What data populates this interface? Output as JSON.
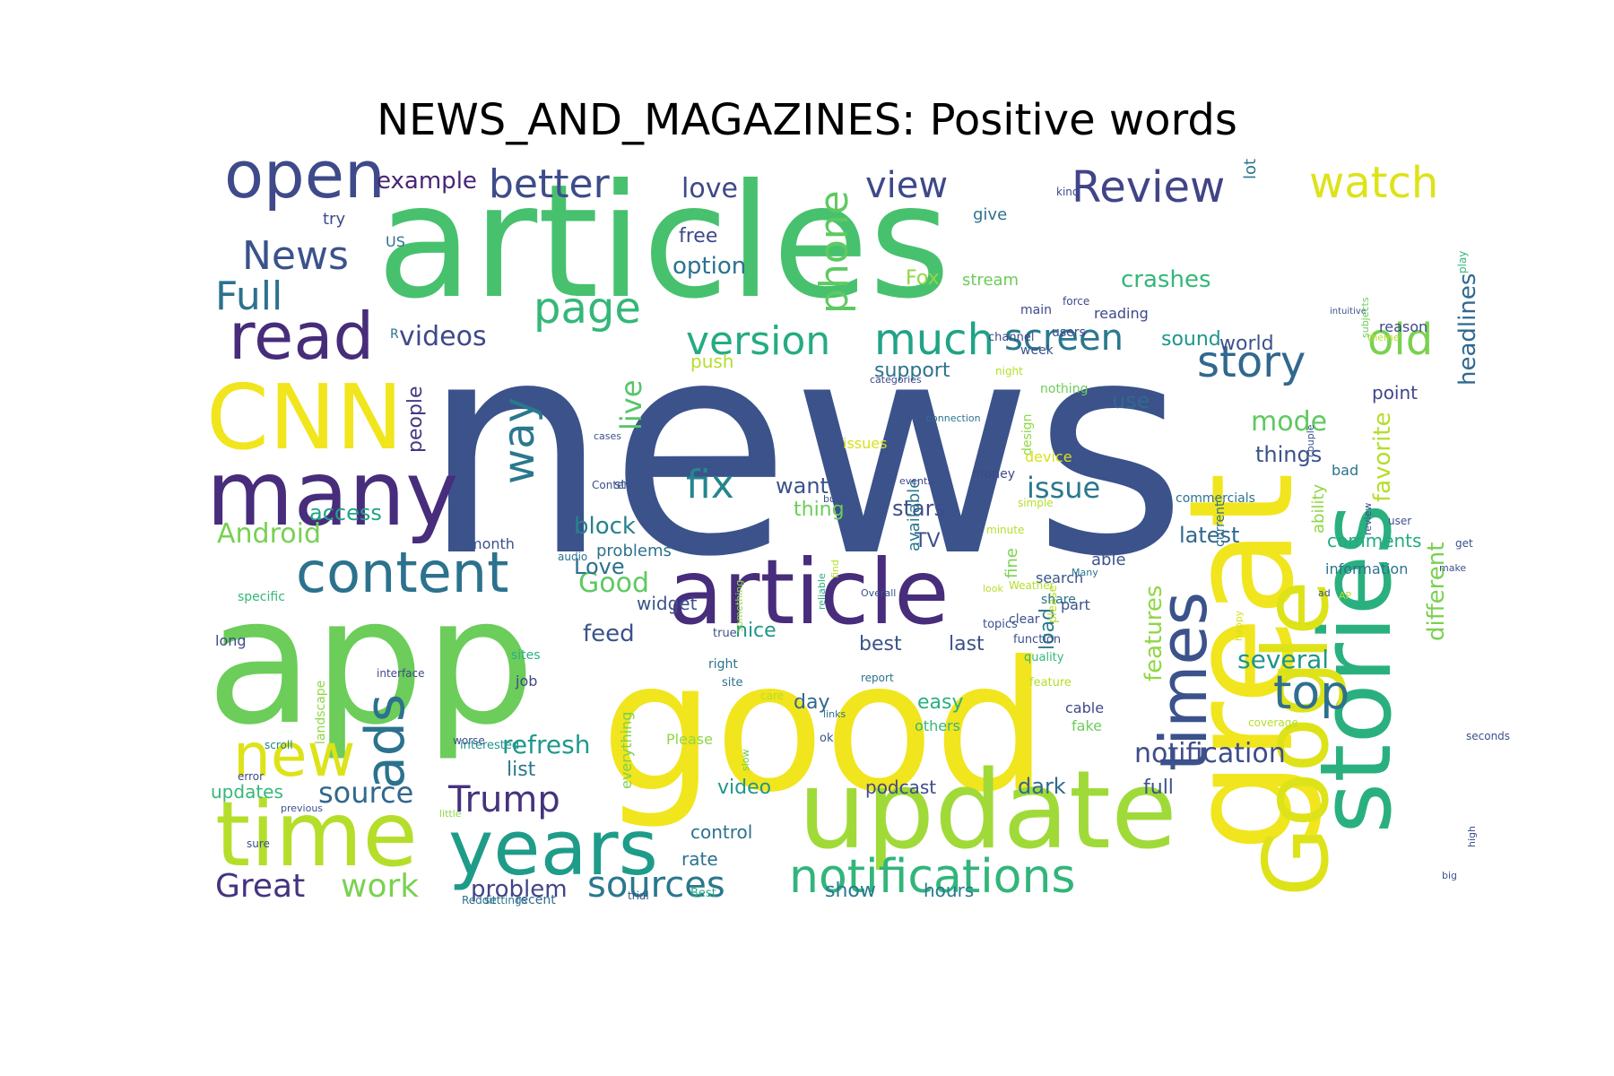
{
  "title": "NEWS_AND_MAGAZINES: Positive words",
  "words": [
    {
      "text": "news",
      "size": 330,
      "color": "#3b528b",
      "rot": 0
    },
    {
      "text": "articles",
      "size": 175,
      "color": "#47c16e",
      "rot": 0
    },
    {
      "text": "app",
      "size": 195,
      "color": "#6ccd5a",
      "rot": 0
    },
    {
      "text": "good",
      "size": 200,
      "color": "#f1e51d",
      "rot": 0
    },
    {
      "text": "great",
      "size": 160,
      "color": "#f1e51d",
      "rot": -90
    },
    {
      "text": "stories",
      "size": 110,
      "color": "#2ab07f",
      "rot": -90
    },
    {
      "text": "update",
      "size": 120,
      "color": "#a0da39",
      "rot": 0
    },
    {
      "text": "Google",
      "size": 100,
      "color": "#dde318",
      "rot": -90
    },
    {
      "text": "article",
      "size": 100,
      "color": "#472d7b",
      "rot": 0
    },
    {
      "text": "many",
      "size": 100,
      "color": "#472d7b",
      "rot": 0
    },
    {
      "text": "CNN",
      "size": 100,
      "color": "#f1e51d",
      "rot": 0
    },
    {
      "text": "time",
      "size": 100,
      "color": "#b5de2b",
      "rot": 0
    },
    {
      "text": "years",
      "size": 85,
      "color": "#1e9c89",
      "rot": 0
    },
    {
      "text": "open",
      "size": 72,
      "color": "#3e4a89",
      "rot": 0
    },
    {
      "text": "read",
      "size": 72,
      "color": "#472c7a",
      "rot": 0
    },
    {
      "text": "content",
      "size": 62,
      "color": "#2c728e",
      "rot": 0
    },
    {
      "text": "new",
      "size": 66,
      "color": "#dde318",
      "rot": 0
    },
    {
      "text": "times",
      "size": 72,
      "color": "#3b528b",
      "rot": -90
    },
    {
      "text": "notifications",
      "size": 52,
      "color": "#31b57b",
      "rot": 0
    },
    {
      "text": "ads",
      "size": 60,
      "color": "#2c728e",
      "rot": -90
    },
    {
      "text": "top",
      "size": 52,
      "color": "#2d708e",
      "rot": 0
    },
    {
      "text": "old",
      "size": 48,
      "color": "#7ad151",
      "rot": 0
    },
    {
      "text": "story",
      "size": 48,
      "color": "#31688e",
      "rot": 0
    },
    {
      "text": "watch",
      "size": 48,
      "color": "#dde318",
      "rot": 0
    },
    {
      "text": "Review",
      "size": 48,
      "color": "#414487",
      "rot": 0
    },
    {
      "text": "better",
      "size": 44,
      "color": "#3e4c8a",
      "rot": 0
    },
    {
      "text": "page",
      "size": 48,
      "color": "#35b779",
      "rot": 0
    },
    {
      "text": "News",
      "size": 44,
      "color": "#3b528b",
      "rot": 0
    },
    {
      "text": "Full",
      "size": 44,
      "color": "#2c728e",
      "rot": 0
    },
    {
      "text": "version",
      "size": 44,
      "color": "#25ab82",
      "rot": 0
    },
    {
      "text": "much",
      "size": 48,
      "color": "#20a386",
      "rot": 0
    },
    {
      "text": "phone",
      "size": 44,
      "color": "#5ec962",
      "rot": -90
    },
    {
      "text": "view",
      "size": 40,
      "color": "#3e4989",
      "rot": 0
    },
    {
      "text": "way",
      "size": 48,
      "color": "#2a788e",
      "rot": -90
    },
    {
      "text": "fix",
      "size": 44,
      "color": "#25858e",
      "rot": 0
    },
    {
      "text": "screen",
      "size": 40,
      "color": "#2a788e",
      "rot": 0
    },
    {
      "text": "Trump",
      "size": 40,
      "color": "#46327e",
      "rot": 0
    },
    {
      "text": "sources",
      "size": 40,
      "color": "#2a788e",
      "rot": 0
    },
    {
      "text": "Great",
      "size": 36,
      "color": "#46337f",
      "rot": 0
    },
    {
      "text": "work",
      "size": 36,
      "color": "#7ad151",
      "rot": 0
    },
    {
      "text": "source",
      "size": 32,
      "color": "#31688e",
      "rot": 0
    },
    {
      "text": "issue",
      "size": 32,
      "color": "#2a788e",
      "rot": 0
    },
    {
      "text": "notification",
      "size": 30,
      "color": "#3e4c8a",
      "rot": 0
    },
    {
      "text": "videos",
      "size": 30,
      "color": "#3e4989",
      "rot": 0
    },
    {
      "text": "Android",
      "size": 30,
      "color": "#77d153",
      "rot": 0
    },
    {
      "text": "mode",
      "size": 30,
      "color": "#5ec962",
      "rot": 0
    },
    {
      "text": "love",
      "size": 30,
      "color": "#3e4989",
      "rot": 0
    },
    {
      "text": "live",
      "size": 32,
      "color": "#56c667",
      "rot": -90
    },
    {
      "text": "Good",
      "size": 30,
      "color": "#5ec962",
      "rot": 0
    },
    {
      "text": "refresh",
      "size": 28,
      "color": "#1f998a",
      "rot": 0
    },
    {
      "text": "crashes",
      "size": 26,
      "color": "#35b779",
      "rot": 0
    },
    {
      "text": "several",
      "size": 28,
      "color": "#1f968b",
      "rot": 0
    },
    {
      "text": "problem",
      "size": 26,
      "color": "#414487",
      "rot": 0
    },
    {
      "text": "features",
      "size": 26,
      "color": "#8fd744",
      "rot": -90
    },
    {
      "text": "favorite",
      "size": 26,
      "color": "#b5de2b",
      "rot": -90
    },
    {
      "text": "different",
      "size": 26,
      "color": "#7ad151",
      "rot": -90
    },
    {
      "text": "headlines",
      "size": 26,
      "color": "#31688e",
      "rot": -90
    },
    {
      "text": "example",
      "size": 26,
      "color": "#482576",
      "rot": 0
    },
    {
      "text": "option",
      "size": 26,
      "color": "#2c728e",
      "rot": 0
    },
    {
      "text": "feed",
      "size": 26,
      "color": "#3b528b",
      "rot": 0
    },
    {
      "text": "block",
      "size": 26,
      "color": "#26828e",
      "rot": 0
    },
    {
      "text": "people",
      "size": 22,
      "color": "#443983",
      "rot": -90
    },
    {
      "text": "latest",
      "size": 24,
      "color": "#31688e",
      "rot": 0
    },
    {
      "text": "things",
      "size": 24,
      "color": "#3b528b",
      "rot": 0
    },
    {
      "text": "use",
      "size": 24,
      "color": "#31688e",
      "rot": 0
    },
    {
      "text": "stars",
      "size": 24,
      "color": "#3e4c8a",
      "rot": 0
    },
    {
      "text": "access",
      "size": 24,
      "color": "#20a386",
      "rot": 0
    },
    {
      "text": "Love",
      "size": 24,
      "color": "#2d708e",
      "rot": 0
    },
    {
      "text": "want",
      "size": 24,
      "color": "#3b528b",
      "rot": 0
    },
    {
      "text": "day",
      "size": 22,
      "color": "#31688e",
      "rot": 0
    },
    {
      "text": "easy",
      "size": 22,
      "color": "#2ab07f",
      "rot": 0
    },
    {
      "text": "best",
      "size": 22,
      "color": "#3b528b",
      "rot": 0
    },
    {
      "text": "nice",
      "size": 22,
      "color": "#1f968b",
      "rot": 0
    },
    {
      "text": "last",
      "size": 22,
      "color": "#3b528b",
      "rot": 0
    },
    {
      "text": "load",
      "size": 22,
      "color": "#2a788e",
      "rot": -90
    },
    {
      "text": "TV",
      "size": 22,
      "color": "#3b528b",
      "rot": 0
    },
    {
      "text": "support",
      "size": 22,
      "color": "#2c728e",
      "rot": 0
    },
    {
      "text": "world",
      "size": 22,
      "color": "#3b528b",
      "rot": 0
    },
    {
      "text": "point",
      "size": 20,
      "color": "#404688",
      "rot": 0
    },
    {
      "text": "sound",
      "size": 22,
      "color": "#1f968b",
      "rot": 0
    },
    {
      "text": "comments",
      "size": 20,
      "color": "#25ab82",
      "rot": 0
    },
    {
      "text": "podcast",
      "size": 20,
      "color": "#3e4989",
      "rot": 0
    },
    {
      "text": "dark",
      "size": 24,
      "color": "#31688e",
      "rot": 0
    },
    {
      "text": "full",
      "size": 22,
      "color": "#3b528b",
      "rot": 0
    },
    {
      "text": "show",
      "size": 22,
      "color": "#2a788e",
      "rot": 0
    },
    {
      "text": "hours",
      "size": 20,
      "color": "#2a788e",
      "rot": 0
    },
    {
      "text": "rate",
      "size": 20,
      "color": "#2c728e",
      "rot": 0
    },
    {
      "text": "control",
      "size": 20,
      "color": "#2c728e",
      "rot": 0
    },
    {
      "text": "video",
      "size": 22,
      "color": "#1f968b",
      "rot": 0
    },
    {
      "text": "updates",
      "size": 20,
      "color": "#35b779",
      "rot": 0
    },
    {
      "text": "list",
      "size": 22,
      "color": "#2a788e",
      "rot": 0
    },
    {
      "text": "push",
      "size": 20,
      "color": "#b5de2b",
      "rot": 0
    },
    {
      "text": "thing",
      "size": 22,
      "color": "#6ccd5a",
      "rot": 0
    },
    {
      "text": "problems",
      "size": 18,
      "color": "#2c728e",
      "rot": 0
    },
    {
      "text": "widget",
      "size": 20,
      "color": "#3b528b",
      "rot": 0
    },
    {
      "text": "Fox",
      "size": 22,
      "color": "#8fd744",
      "rot": 0
    },
    {
      "text": "free",
      "size": 22,
      "color": "#3e4989",
      "rot": 0
    },
    {
      "text": "try",
      "size": 18,
      "color": "#3e4989",
      "rot": 0
    },
    {
      "text": "give",
      "size": 18,
      "color": "#2c728e",
      "rot": 0
    },
    {
      "text": "lot",
      "size": 18,
      "color": "#2a788e",
      "rot": -90
    },
    {
      "text": "issues",
      "size": 16,
      "color": "#d8e219",
      "rot": 0
    },
    {
      "text": "available",
      "size": 18,
      "color": "#2a788e",
      "rot": -90
    },
    {
      "text": "ability",
      "size": 18,
      "color": "#8fd744",
      "rot": -90
    },
    {
      "text": "reading",
      "size": 16,
      "color": "#3e4989",
      "rot": 0
    },
    {
      "text": "long",
      "size": 16,
      "color": "#3e4989",
      "rot": 0
    },
    {
      "text": "sites",
      "size": 14,
      "color": "#2ab07f",
      "rot": 0
    },
    {
      "text": "job",
      "size": 16,
      "color": "#3e4989",
      "rot": 0
    },
    {
      "text": "fake",
      "size": 16,
      "color": "#6ccd5a",
      "rot": 0
    },
    {
      "text": "cable",
      "size": 16,
      "color": "#3e4989",
      "rot": 0
    },
    {
      "text": "others",
      "size": 16,
      "color": "#35b779",
      "rot": 0
    },
    {
      "text": "Please",
      "size": 16,
      "color": "#8fd744",
      "rot": 0
    },
    {
      "text": "everything",
      "size": 16,
      "color": "#7ad151",
      "rot": -90
    },
    {
      "text": "landscape",
      "size": 14,
      "color": "#8fd744",
      "rot": -90
    },
    {
      "text": "interested",
      "size": 13,
      "color": "#1f968b",
      "rot": 0
    },
    {
      "text": "scroll",
      "size": 12,
      "color": "#25858e",
      "rot": 0
    },
    {
      "text": "error",
      "size": 12,
      "color": "#3e4989",
      "rot": 0
    },
    {
      "text": "previous",
      "size": 11,
      "color": "#3b528b",
      "rot": 0
    },
    {
      "text": "sure",
      "size": 12,
      "color": "#3b528b",
      "rot": 0
    },
    {
      "text": "little",
      "size": 11,
      "color": "#8fd744",
      "rot": 0
    },
    {
      "text": "recent",
      "size": 14,
      "color": "#31688e",
      "rot": 0
    },
    {
      "text": "settings",
      "size": 12,
      "color": "#2c728e",
      "rot": 0
    },
    {
      "text": "trial",
      "size": 12,
      "color": "#3b528b",
      "rot": 0
    },
    {
      "text": "Best",
      "size": 13,
      "color": "#25ab82",
      "rot": 0
    },
    {
      "text": "worse",
      "size": 12,
      "color": "#3b528b",
      "rot": 0
    },
    {
      "text": "interface",
      "size": 12,
      "color": "#3e4989",
      "rot": 0
    },
    {
      "text": "Reddit",
      "size": 12,
      "color": "#2c728e",
      "rot": 0
    },
    {
      "text": "specific",
      "size": 14,
      "color": "#35b779",
      "rot": 0
    },
    {
      "text": "month",
      "size": 16,
      "color": "#3b528b",
      "rot": 0
    },
    {
      "text": "audio",
      "size": 12,
      "color": "#2c728e",
      "rot": 0
    },
    {
      "text": "star",
      "size": 14,
      "color": "#3b528b",
      "rot": 0
    },
    {
      "text": "Content",
      "size": 12,
      "color": "#3b528b",
      "rot": 0
    },
    {
      "text": "cases",
      "size": 11,
      "color": "#3b528b",
      "rot": 0
    },
    {
      "text": "true",
      "size": 13,
      "color": "#3b528b",
      "rot": 0
    },
    {
      "text": "right",
      "size": 14,
      "color": "#2c728e",
      "rot": 0
    },
    {
      "text": "links",
      "size": 11,
      "color": "#2c728e",
      "rot": 0
    },
    {
      "text": "ok",
      "size": 13,
      "color": "#3b528b",
      "rot": 0
    },
    {
      "text": "slow",
      "size": 11,
      "color": "#6ccd5a",
      "rot": -90
    },
    {
      "text": "something",
      "size": 11,
      "color": "#8fd744",
      "rot": -90
    },
    {
      "text": "site",
      "size": 13,
      "color": "#2c728e",
      "rot": 0
    },
    {
      "text": "care",
      "size": 12,
      "color": "#b5de2b",
      "rot": 0
    },
    {
      "text": "report",
      "size": 12,
      "color": "#2c728e",
      "rot": 0
    },
    {
      "text": "Overall",
      "size": 11,
      "color": "#3b528b",
      "rot": 0
    },
    {
      "text": "find",
      "size": 11,
      "color": "#b5de2b",
      "rot": -90
    },
    {
      "text": "reliable",
      "size": 11,
      "color": "#2ab07f",
      "rot": -90
    },
    {
      "text": "button",
      "size": 11,
      "color": "#3b528b",
      "rot": 0
    },
    {
      "text": "fine",
      "size": 18,
      "color": "#7ad151",
      "rot": -90
    },
    {
      "text": "search",
      "size": 16,
      "color": "#3b528b",
      "rot": 0
    },
    {
      "text": "clear",
      "size": 14,
      "color": "#3b528b",
      "rot": 0
    },
    {
      "text": "topics",
      "size": 13,
      "color": "#3b528b",
      "rot": 0
    },
    {
      "text": "function",
      "size": 13,
      "color": "#3b528b",
      "rot": 0
    },
    {
      "text": "simple",
      "size": 12,
      "color": "#b5de2b",
      "rot": 0
    },
    {
      "text": "minute",
      "size": 12,
      "color": "#b5de2b",
      "rot": 0
    },
    {
      "text": "Weather",
      "size": 12,
      "color": "#b5de2b",
      "rot": 0
    },
    {
      "text": "able",
      "size": 18,
      "color": "#3b528b",
      "rot": 0
    },
    {
      "text": "part",
      "size": 16,
      "color": "#3b528b",
      "rot": 0
    },
    {
      "text": "Many",
      "size": 11,
      "color": "#2c728e",
      "rot": 0
    },
    {
      "text": "look",
      "size": 11,
      "color": "#b5de2b",
      "rot": 0
    },
    {
      "text": "feature",
      "size": 13,
      "color": "#b5de2b",
      "rot": 0
    },
    {
      "text": "quality",
      "size": 13,
      "color": "#35b779",
      "rot": 0
    },
    {
      "text": "please",
      "size": 13,
      "color": "#b5de2b",
      "rot": -90
    },
    {
      "text": "share",
      "size": 14,
      "color": "#2c728e",
      "rot": 0
    },
    {
      "text": "commercials",
      "size": 14,
      "color": "#2c728e",
      "rot": 0
    },
    {
      "text": "week",
      "size": 14,
      "color": "#3b528b",
      "rot": 0
    },
    {
      "text": "information",
      "size": 16,
      "color": "#2c728e",
      "rot": 0
    },
    {
      "text": "AP",
      "size": 11,
      "color": "#b5de2b",
      "rot": 0
    },
    {
      "text": "ad",
      "size": 11,
      "color": "#3b528b",
      "rot": 0
    },
    {
      "text": "bad",
      "size": 16,
      "color": "#2c728e",
      "rot": 0
    },
    {
      "text": "couple",
      "size": 11,
      "color": "#3b528b",
      "rot": -90
    },
    {
      "text": "happy",
      "size": 11,
      "color": "#d8e219",
      "rot": -90
    },
    {
      "text": "high",
      "size": 11,
      "color": "#3b528b",
      "rot": -90
    },
    {
      "text": "seconds",
      "size": 12,
      "color": "#3b528b",
      "rot": 0
    },
    {
      "text": "current",
      "size": 14,
      "color": "#2c728e",
      "rot": -90
    },
    {
      "text": "coverage",
      "size": 12,
      "color": "#b5de2b",
      "rot": 0
    },
    {
      "text": "big",
      "size": 11,
      "color": "#3b528b",
      "rot": 0
    },
    {
      "text": "make",
      "size": 11,
      "color": "#3b528b",
      "rot": 0
    },
    {
      "text": "user",
      "size": 12,
      "color": "#3b528b",
      "rot": 0
    },
    {
      "text": "get",
      "size": 12,
      "color": "#3b528b",
      "rot": 0
    },
    {
      "text": "review",
      "size": 11,
      "color": "#3b528b",
      "rot": -90
    },
    {
      "text": "intuitive",
      "size": 10,
      "color": "#3b528b",
      "rot": 0
    },
    {
      "text": "subjects",
      "size": 11,
      "color": "#6ccd5a",
      "rot": -90
    },
    {
      "text": "theme",
      "size": 11,
      "color": "#b5de2b",
      "rot": 0
    },
    {
      "text": "play",
      "size": 12,
      "color": "#35b779",
      "rot": -90
    },
    {
      "text": "reason",
      "size": 16,
      "color": "#3e4989",
      "rot": 0
    },
    {
      "text": "kind",
      "size": 12,
      "color": "#3e4989",
      "rot": 0
    },
    {
      "text": "force",
      "size": 12,
      "color": "#3e4989",
      "rot": 0
    },
    {
      "text": "main",
      "size": 14,
      "color": "#3e4989",
      "rot": 0
    },
    {
      "text": "users",
      "size": 14,
      "color": "#3e4989",
      "rot": 0
    },
    {
      "text": "stream",
      "size": 18,
      "color": "#6ccd5a",
      "rot": 0
    },
    {
      "text": "channel",
      "size": 13,
      "color": "#3e4989",
      "rot": 0
    },
    {
      "text": "night",
      "size": 12,
      "color": "#b5de2b",
      "rot": 0
    },
    {
      "text": "nothing",
      "size": 14,
      "color": "#6ccd5a",
      "rot": 0
    },
    {
      "text": "design",
      "size": 14,
      "color": "#8fd744",
      "rot": -90
    },
    {
      "text": "device",
      "size": 16,
      "color": "#d8e219",
      "rot": 0
    },
    {
      "text": "money",
      "size": 14,
      "color": "#3e4989",
      "rot": 0
    },
    {
      "text": "categories",
      "size": 11,
      "color": "#3e4989",
      "rot": 0
    },
    {
      "text": "events",
      "size": 11,
      "color": "#3e4989",
      "rot": 0
    },
    {
      "text": "connection",
      "size": 11,
      "color": "#2c728e",
      "rot": 0
    },
    {
      "text": "US",
      "size": 16,
      "color": "#2c728e",
      "rot": 0
    },
    {
      "text": "R",
      "size": 14,
      "color": "#2c728e",
      "rot": 0
    }
  ]
}
